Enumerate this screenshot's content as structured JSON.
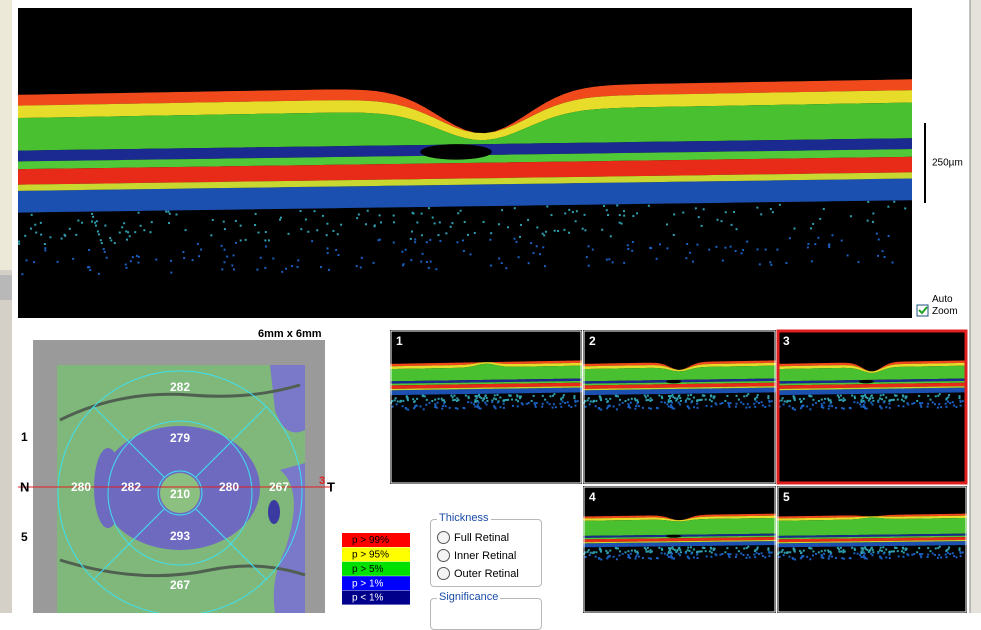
{
  "main_scan": {
    "scale_label": "250µm",
    "auto_zoom": "Auto Zoom"
  },
  "thickness_map": {
    "size": "6mm x 6mm",
    "nasal": "N",
    "temporal": "T",
    "line_markers": [
      "1",
      "5",
      "3"
    ],
    "sectors": {
      "outer_superior": 282,
      "inner_superior": 279,
      "outer_nasal": 280,
      "inner_nasal": 282,
      "center": 210,
      "inner_temporal": 280,
      "outer_temporal": 267,
      "inner_inferior": 293,
      "outer_inferior": 267
    }
  },
  "legend": [
    {
      "label": "p > 99%",
      "color": "#ff0000"
    },
    {
      "label": "p > 95%",
      "color": "#ffff00"
    },
    {
      "label": "p > 5%",
      "color": "#00e000"
    },
    {
      "label": "p > 1%",
      "color": "#0000ff"
    },
    {
      "label": "p < 1%",
      "color": "#00008b"
    }
  ],
  "thumbnails": [
    "1",
    "2",
    "3",
    "4",
    "5"
  ],
  "thickness_group": {
    "title": "Thickness",
    "options": [
      "Full Retinal",
      "Inner Retinal",
      "Outer Retinal"
    ]
  },
  "significance_group": {
    "title": "Significance"
  }
}
